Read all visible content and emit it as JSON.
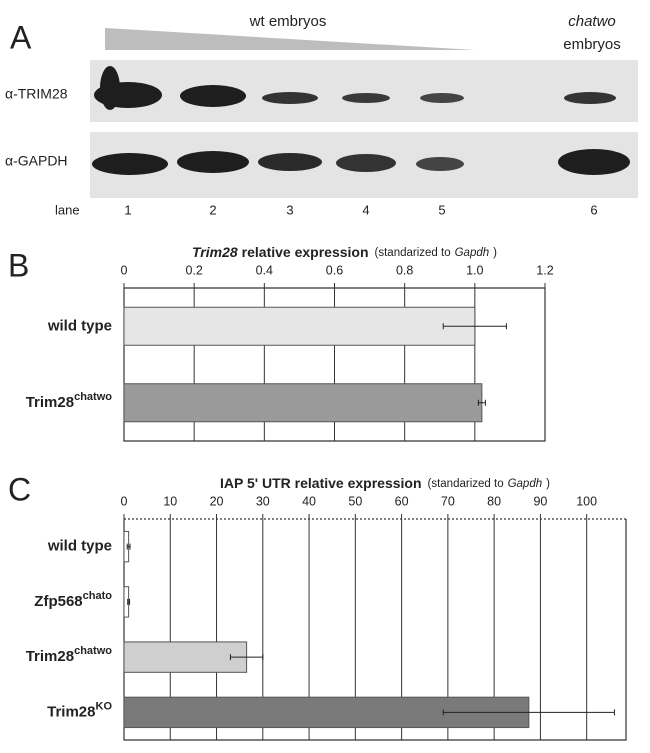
{
  "blot": {
    "panel": "A",
    "group_wt": "wt embryos",
    "group_mut": [
      "chatwo",
      "embryos"
    ],
    "antibodies": [
      "α-TRIM28",
      "α-GAPDH"
    ],
    "lane_title": "lane",
    "lanes": [
      "1",
      "2",
      "3",
      "4",
      "5",
      "6"
    ]
  },
  "chart_data": [
    {
      "type": "bar",
      "orientation": "horizontal",
      "panel": "B",
      "title": [
        {
          "text": "Trim28",
          "italic": true
        },
        {
          "text": "relative expression"
        }
      ],
      "subtitle": [
        {
          "text": "(standarized to"
        },
        {
          "text": "Gapdh",
          "italic": true
        },
        {
          "text": ")"
        }
      ],
      "categories": [
        [
          {
            "text": "wild type"
          }
        ],
        [
          {
            "text": "Trim28"
          },
          {
            "text": "chatwo",
            "sup": true
          }
        ]
      ],
      "values": [
        1.0,
        1.02
      ],
      "errors": [
        0.09,
        0.01
      ],
      "colors": [
        "#e6e6e6",
        "#9a9a9a"
      ],
      "xlim": [
        0,
        1.2
      ],
      "xticks": [
        0,
        0.2,
        0.4,
        0.6,
        0.8,
        {
          "value": 1,
          "label": "1.0"
        },
        1.2
      ],
      "grid": true
    },
    {
      "type": "bar",
      "orientation": "horizontal",
      "panel": "C",
      "title": [
        {
          "text": "IAP 5' UTR relative expression"
        }
      ],
      "subtitle": [
        {
          "text": "(standarized to"
        },
        {
          "text": "Gapdh",
          "italic": true
        },
        {
          "text": ")"
        }
      ],
      "categories": [
        [
          {
            "text": "wild type"
          }
        ],
        [
          {
            "text": "Zfp568"
          },
          {
            "text": "chato",
            "sup": true
          }
        ],
        [
          {
            "text": "Trim28"
          },
          {
            "text": "chatwo",
            "sup": true
          }
        ],
        [
          {
            "text": "Trim28"
          },
          {
            "text": "KO",
            "sup": true
          }
        ]
      ],
      "values": [
        1,
        1,
        26.5,
        87.5
      ],
      "errors": [
        0.3,
        0.2,
        3.5,
        18.5
      ],
      "colors": [
        "#ffffff",
        "#ffffff",
        "#cfcfcf",
        "#7a7a7a"
      ],
      "xlim": [
        0,
        108.5
      ],
      "xticks": [
        0,
        10,
        20,
        30,
        40,
        50,
        60,
        70,
        80,
        90,
        100
      ],
      "grid": true
    }
  ]
}
